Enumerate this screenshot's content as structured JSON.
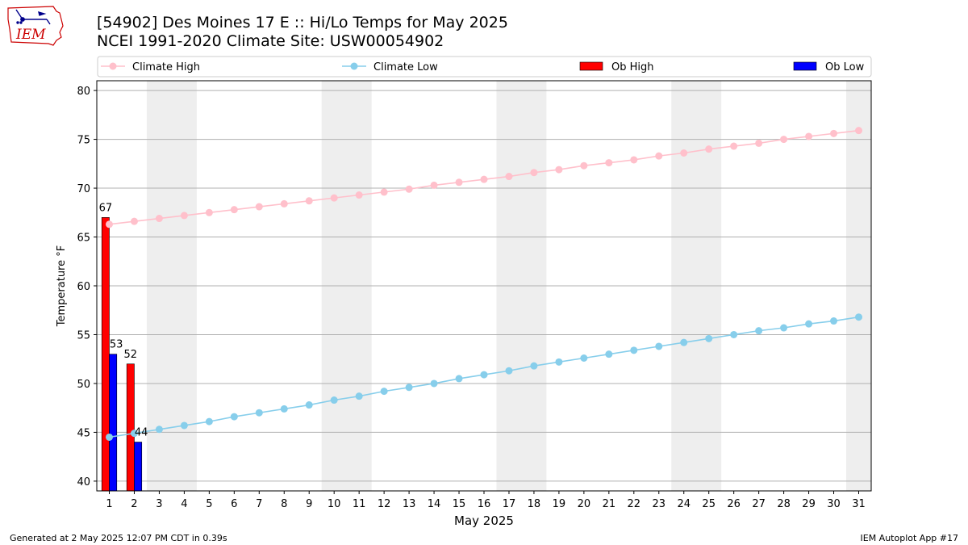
{
  "header": {
    "title": "[54902] Des Moines 17 E :: Hi/Lo Temps for May 2025",
    "subtitle": "NCEI 1991-2020 Climate Site: USW00054902",
    "logo_text": "IEM"
  },
  "footer": {
    "generated": "Generated at 2 May 2025 12:07 PM CDT in 0.39s",
    "app": "IEM Autoplot App #17"
  },
  "colors": {
    "climate_high": "#ffc0cb",
    "climate_low": "#87ceeb",
    "ob_high": "#ff0000",
    "ob_low": "#0000ff",
    "weekend_shade": "#eeeeee",
    "grid": "#b0b0b0"
  },
  "chart_data": {
    "type": "bar",
    "xlabel": "May 2025",
    "ylabel": "Temperature °F",
    "xlim": [
      0.5,
      31.5
    ],
    "ylim": [
      39,
      81
    ],
    "yticks": [
      40,
      45,
      50,
      55,
      60,
      65,
      70,
      75,
      80
    ],
    "categories": [
      "1",
      "2",
      "3",
      "4",
      "5",
      "6",
      "7",
      "8",
      "9",
      "10",
      "11",
      "12",
      "13",
      "14",
      "15",
      "16",
      "17",
      "18",
      "19",
      "20",
      "21",
      "22",
      "23",
      "24",
      "25",
      "26",
      "27",
      "28",
      "29",
      "30",
      "31"
    ],
    "grid": "horizontal",
    "legend_position": "top",
    "weekend_spans": [
      [
        2.5,
        4.5
      ],
      [
        9.5,
        11.5
      ],
      [
        16.5,
        18.5
      ],
      [
        23.5,
        25.5
      ],
      [
        30.5,
        31.5
      ]
    ],
    "series": [
      {
        "name": "Climate High",
        "kind": "line",
        "x": [
          1,
          2,
          3,
          4,
          5,
          6,
          7,
          8,
          9,
          10,
          11,
          12,
          13,
          14,
          15,
          16,
          17,
          18,
          19,
          20,
          21,
          22,
          23,
          24,
          25,
          26,
          27,
          28,
          29,
          30,
          31
        ],
        "values": [
          66.3,
          66.6,
          66.9,
          67.2,
          67.5,
          67.8,
          68.1,
          68.4,
          68.7,
          69.0,
          69.3,
          69.6,
          69.9,
          70.3,
          70.6,
          70.9,
          71.2,
          71.6,
          71.9,
          72.3,
          72.6,
          72.9,
          73.3,
          73.6,
          74.0,
          74.3,
          74.6,
          75.0,
          75.3,
          75.6,
          75.9
        ]
      },
      {
        "name": "Climate Low",
        "kind": "line",
        "x": [
          1,
          2,
          3,
          4,
          5,
          6,
          7,
          8,
          9,
          10,
          11,
          12,
          13,
          14,
          15,
          16,
          17,
          18,
          19,
          20,
          21,
          22,
          23,
          24,
          25,
          26,
          27,
          28,
          29,
          30,
          31
        ],
        "values": [
          44.5,
          44.9,
          45.3,
          45.7,
          46.1,
          46.6,
          47.0,
          47.4,
          47.8,
          48.3,
          48.7,
          49.2,
          49.6,
          50.0,
          50.5,
          50.9,
          51.3,
          51.8,
          52.2,
          52.6,
          53.0,
          53.4,
          53.8,
          54.2,
          54.6,
          55.0,
          55.4,
          55.7,
          56.1,
          56.4,
          56.8
        ]
      },
      {
        "name": "Ob High",
        "kind": "bar",
        "x": [
          1,
          2
        ],
        "values": [
          67,
          52
        ],
        "labels": [
          "67",
          "52"
        ]
      },
      {
        "name": "Ob Low",
        "kind": "bar",
        "x": [
          1,
          2
        ],
        "values": [
          53,
          44
        ],
        "labels": [
          "53",
          "44"
        ]
      }
    ]
  }
}
